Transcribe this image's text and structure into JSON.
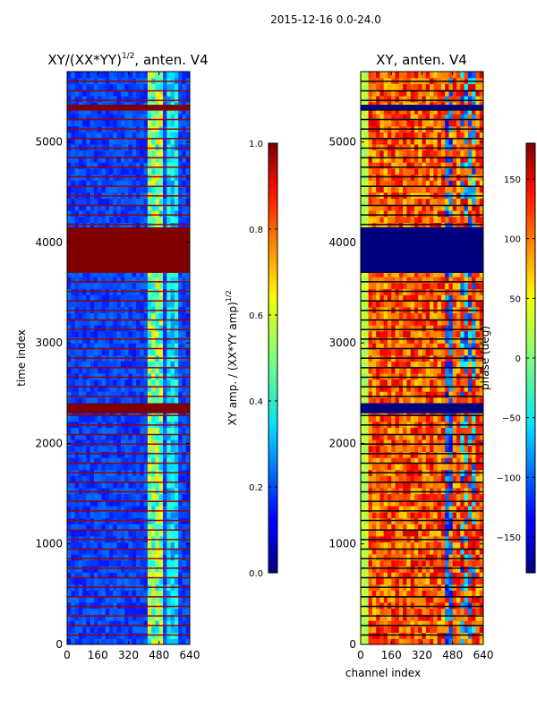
{
  "suptitle": "2015-12-16 0.0-24.0",
  "chart_data": [
    {
      "type": "heatmap",
      "title_main": "XY/(XX*YY)",
      "title_exp": "1/2",
      "title_tail": ", anten. V4",
      "xlabel": "",
      "ylabel": "time index",
      "xlim": [
        0,
        640
      ],
      "ylim": [
        0,
        5700
      ],
      "x_ticks": [
        0,
        160,
        320,
        480,
        640
      ],
      "y_ticks": [
        0,
        1000,
        2000,
        3000,
        4000,
        5000
      ],
      "colorbar": {
        "label_main": "XY amp. / (XX*YY amp)",
        "label_exp": "1/2",
        "range": [
          0.0,
          1.0
        ],
        "ticks": [
          "0.0",
          "0.2",
          "0.4",
          "0.6",
          "0.8",
          "1.0"
        ]
      },
      "flagged_bands": [
        [
          2300,
          2400
        ],
        [
          3700,
          4150
        ],
        [
          5320,
          5370
        ]
      ]
    },
    {
      "type": "heatmap",
      "title_main": "XY, anten. V4",
      "xlabel": "channel index",
      "ylabel": "",
      "xlim": [
        0,
        640
      ],
      "ylim": [
        0,
        5700
      ],
      "x_ticks": [
        0,
        160,
        320,
        480,
        640
      ],
      "y_ticks": [
        0,
        1000,
        2000,
        3000,
        4000,
        5000
      ],
      "colorbar": {
        "label_main": "phase (deg)",
        "range": [
          -180,
          180
        ],
        "ticks": [
          "150",
          "100",
          "50",
          "0",
          "−50",
          "−100",
          "−150"
        ],
        "tick_values": [
          150,
          100,
          50,
          0,
          -50,
          -100,
          -150
        ]
      },
      "flagged_bands": [
        [
          2300,
          2400
        ],
        [
          3700,
          4150
        ],
        [
          5320,
          5370
        ]
      ]
    }
  ]
}
